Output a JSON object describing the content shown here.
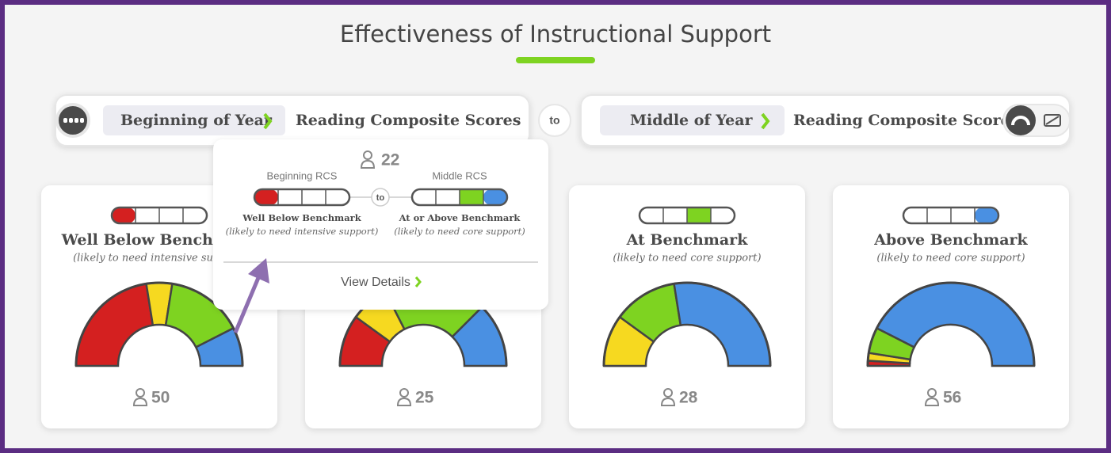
{
  "title": "Effectiveness of Instructional Support",
  "from": {
    "period": "Beginning of Year",
    "measure": "Reading Composite Scores"
  },
  "connector": "to",
  "to": {
    "period": "Middle of Year",
    "measure": "Reading Composite Scores"
  },
  "level_colors": [
    "#d42020",
    "#f6d920",
    "#7ed321",
    "#4a90e2"
  ],
  "cards": [
    {
      "title": "Well Below Benchmark",
      "subtitle": "(likely to need intensive support)",
      "level": 0,
      "count": 50,
      "gauge": [
        45,
        10,
        30,
        15
      ]
    },
    {
      "level": 1,
      "count": 25,
      "gauge": [
        20,
        15,
        40,
        25
      ]
    },
    {
      "title": "At Benchmark",
      "subtitle": "(likely to need core support)",
      "level": 2,
      "count": 28,
      "gauge": [
        0,
        20,
        25,
        55
      ]
    },
    {
      "title": "Above Benchmark",
      "subtitle": "(likely to need core support)",
      "level": 3,
      "count": 56,
      "gauge": [
        2,
        3,
        10,
        85
      ]
    }
  ],
  "popup": {
    "count": 22,
    "from_label": "Beginning RCS",
    "to_label": "Middle RCS",
    "connector": "to",
    "from_levels": [
      0
    ],
    "to_levels": [
      2,
      3
    ],
    "from_title": "Well Below Benchmark",
    "from_subtitle": "(likely to need intensive support)",
    "to_title": "At or Above Benchmark",
    "to_subtitle": "(likely to need core support)",
    "link": "View Details"
  }
}
